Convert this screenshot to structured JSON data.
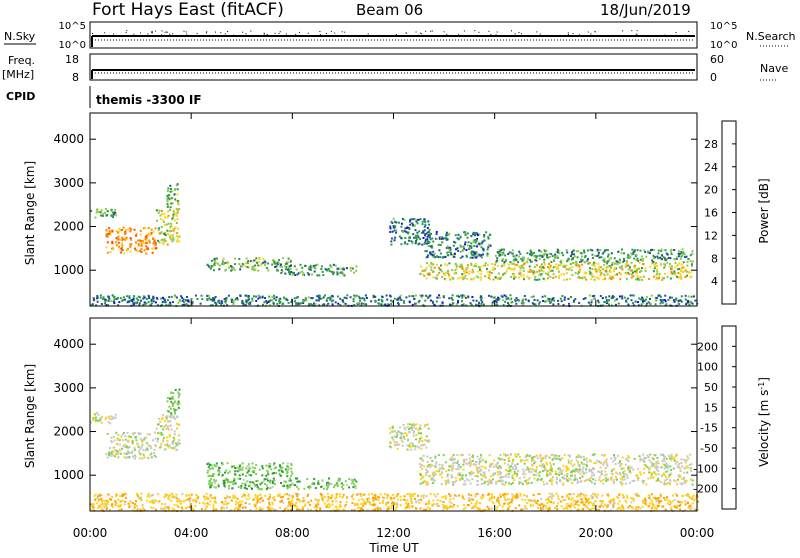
{
  "header": {
    "station": "Fort Hays East (fitACF)",
    "beam": "Beam 06",
    "date": "18/Jun/2019"
  },
  "top_panels": {
    "nsky_label": "N.Sky",
    "nsky_ticks": [
      "10^5",
      "10^0"
    ],
    "nsearch_label": "N.Search",
    "nsearch_ticks": [
      "10^5",
      "10^0"
    ],
    "freq_label": "Freq.",
    "freq_unit": "[MHz]",
    "freq_ticks": [
      "18",
      "8"
    ],
    "nave_label": "Nave",
    "nave_ticks": [
      "60",
      "0"
    ],
    "cpid_label": "CPID",
    "cpid_text": "themis -3300 IF"
  },
  "chart_data": [
    {
      "type": "heatmap",
      "panel": "power",
      "ylabel": "Slant Range [km]",
      "y_ticks": [
        "4000",
        "3000",
        "2000",
        "1000"
      ],
      "ylim": [
        180,
        4600
      ],
      "x_ticks": [
        "00:00",
        "04:00",
        "08:00",
        "12:00",
        "16:00",
        "20:00",
        "00:00"
      ],
      "xlim": [
        0,
        24
      ],
      "colorbar": {
        "label": "Power [dB]",
        "ticks": [
          "28",
          "24",
          "20",
          "16",
          "12",
          "8",
          "4"
        ],
        "colors": [
          "#ff0000",
          "#ff4a00",
          "#ff8c00",
          "#ffd21e",
          "#8cc84b",
          "#289b46",
          "#20508c",
          "#1414dc"
        ]
      },
      "echo_bands": [
        {
          "t": [
            0.0,
            1.0
          ],
          "range_km": [
            2200,
            2450
          ],
          "power_db": 12
        },
        {
          "t": [
            0.6,
            2.6
          ],
          "range_km": [
            1400,
            2000
          ],
          "power_db": 22
        },
        {
          "t": [
            2.6,
            3.5
          ],
          "range_km": [
            1600,
            2400
          ],
          "power_db": 16
        },
        {
          "t": [
            3.0,
            3.5
          ],
          "range_km": [
            2400,
            3000
          ],
          "power_db": 12
        },
        {
          "t": [
            4.6,
            8.0
          ],
          "range_km": [
            1000,
            1300
          ],
          "power_db": 12
        },
        {
          "t": [
            7.5,
            10.5
          ],
          "range_km": [
            900,
            1150
          ],
          "power_db": 10
        },
        {
          "t": [
            11.8,
            13.4
          ],
          "range_km": [
            1600,
            2200
          ],
          "power_db": 8
        },
        {
          "t": [
            13.2,
            15.8
          ],
          "range_km": [
            1300,
            1900
          ],
          "power_db": 8
        },
        {
          "t": [
            13.0,
            23.8
          ],
          "range_km": [
            800,
            1200
          ],
          "power_db": 16
        },
        {
          "t": [
            16.0,
            23.8
          ],
          "range_km": [
            1200,
            1500
          ],
          "power_db": 10
        },
        {
          "t": [
            0.0,
            24.0
          ],
          "range_km": [
            200,
            450
          ],
          "power_db": 8
        }
      ]
    },
    {
      "type": "heatmap",
      "panel": "velocity",
      "ylabel": "Slant Range [km]",
      "y_ticks": [
        "4000",
        "3000",
        "2000",
        "1000"
      ],
      "ylim": [
        180,
        4600
      ],
      "x_ticks": [
        "00:00",
        "04:00",
        "08:00",
        "12:00",
        "16:00",
        "20:00",
        "00:00"
      ],
      "xlim": [
        0,
        24
      ],
      "xlabel": "Time UT",
      "colorbar": {
        "label": "Velocity [m s^-1]",
        "ticks": [
          "200",
          "100",
          "50",
          "15",
          "-15",
          "-50",
          "-100",
          "-200"
        ],
        "colors": [
          "#1e28c8",
          "#1e5a78",
          "#2d9b37",
          "#7dd250",
          "#c8c8c8",
          "#ffd21e",
          "#ffa000",
          "#ff5000",
          "#ff0000"
        ]
      },
      "echo_bands": [
        {
          "t": [
            0.0,
            1.0
          ],
          "range_km": [
            2200,
            2450
          ],
          "velocity": 0
        },
        {
          "t": [
            0.6,
            2.6
          ],
          "range_km": [
            1400,
            2000
          ],
          "velocity": 0
        },
        {
          "t": [
            2.6,
            3.5
          ],
          "range_km": [
            1600,
            2400
          ],
          "velocity": 0
        },
        {
          "t": [
            3.0,
            3.5
          ],
          "range_km": [
            2400,
            3000
          ],
          "velocity": 40
        },
        {
          "t": [
            4.6,
            8.0
          ],
          "range_km": [
            1000,
            1300
          ],
          "velocity": 40
        },
        {
          "t": [
            4.6,
            10.5
          ],
          "range_km": [
            700,
            950
          ],
          "velocity": 40
        },
        {
          "t": [
            11.8,
            13.4
          ],
          "range_km": [
            1600,
            2200
          ],
          "velocity": 0
        },
        {
          "t": [
            13.0,
            23.8
          ],
          "range_km": [
            800,
            1500
          ],
          "velocity": 0
        },
        {
          "t": [
            0.0,
            24.0
          ],
          "range_km": [
            200,
            600
          ],
          "velocity": -40
        }
      ]
    }
  ]
}
